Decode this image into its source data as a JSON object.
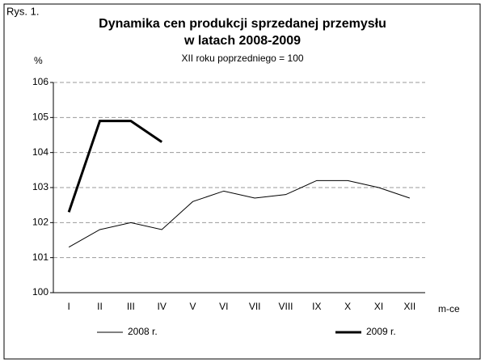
{
  "chart_data": {
    "type": "line",
    "figure_label": "Rys. 1.",
    "title": [
      "Dynamika cen produkcji sprzedanej przemysłu",
      "w latach 2008-2009"
    ],
    "subtitle": "XII roku poprzedniego = 100",
    "y_label": "%",
    "x_label": "m-ce",
    "categories": [
      "I",
      "II",
      "III",
      "IV",
      "V",
      "VI",
      "VII",
      "VIII",
      "IX",
      "X",
      "XI",
      "XII"
    ],
    "series": [
      {
        "name": "2008 r.",
        "color": "#000000",
        "width": 1,
        "values": [
          101.3,
          101.8,
          102.0,
          101.8,
          102.6,
          102.9,
          102.7,
          102.8,
          103.2,
          103.2,
          103.0,
          102.7
        ]
      },
      {
        "name": "2009 r.",
        "color": "#000000",
        "width": 3,
        "values": [
          102.3,
          104.9,
          104.9,
          104.3,
          null,
          null,
          null,
          null,
          null,
          null,
          null,
          null
        ]
      }
    ],
    "ylim": [
      100,
      106
    ],
    "yticks": [
      100,
      101,
      102,
      103,
      104,
      105,
      106
    ],
    "grid": true
  }
}
